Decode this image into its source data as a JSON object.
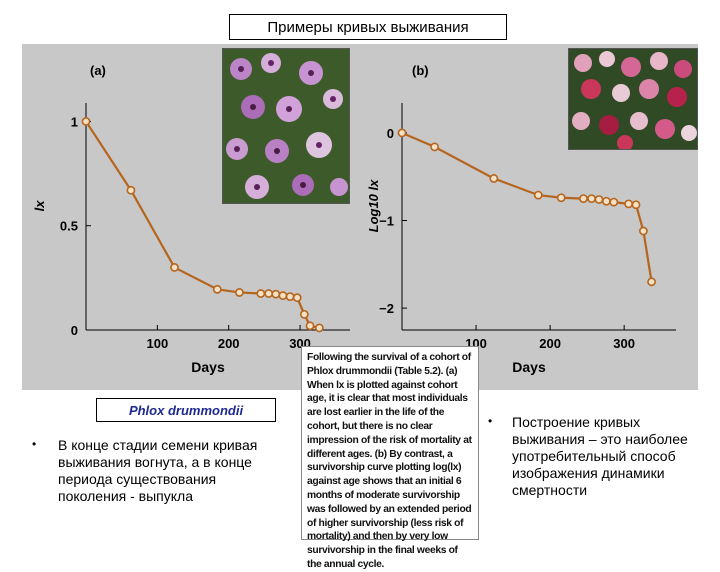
{
  "slide_title": "Примеры кривых выживания",
  "species_label": "Phlox drummondii",
  "bullet_left": "В конце стадии семени кривая выживания вогнута, а в конце периода существования поколения - выпукла",
  "bullet_right": "Построение кривых выживания – это наиболее употребительный способ изображения динамики смертности",
  "bullet_symbol": "•",
  "caption": "Following the survival of a cohort of Phlox drummondii (Table 5.2). (a) When lx is plotted against cohort age, it is clear that most individuals are lost earlier in the life of the cohort, but there is no clear impression of the risk of mortality at different ages. (b) By contrast, a survivorship curve plotting log(lx) against age shows that an initial 6 months of moderate survivorship was followed by an extended period of higher survivorship (less risk of mortality) and then by very low survivorship in the final weeks of the annual cycle.",
  "colors": {
    "line": "#b5651d",
    "marker_fill": "#f4e1c6",
    "panel": "#c8c8c8"
  },
  "chart_data": [
    {
      "type": "line",
      "panel_label": "(a)",
      "xlabel": "Days",
      "ylabel": "lx",
      "xlim": [
        0,
        370
      ],
      "ylim": [
        0,
        1.05
      ],
      "x_ticks": [
        100,
        200,
        300
      ],
      "y_ticks": [
        0,
        0.5,
        1
      ],
      "y_tick_labels": [
        "0",
        "0.5",
        "1"
      ],
      "x": [
        0,
        63,
        124,
        184,
        215,
        245,
        256,
        266,
        276,
        286,
        296,
        306,
        314,
        327
      ],
      "y": [
        1.0,
        0.67,
        0.3,
        0.195,
        0.18,
        0.175,
        0.175,
        0.172,
        0.165,
        0.16,
        0.155,
        0.075,
        0.02,
        0.01
      ]
    },
    {
      "type": "line",
      "panel_label": "(b)",
      "xlabel": "Days",
      "ylabel": "Log10 lx",
      "xlim": [
        0,
        370
      ],
      "ylim": [
        -2.25,
        0.25
      ],
      "x_ticks": [
        100,
        200,
        300
      ],
      "y_ticks": [
        0,
        -1,
        -2
      ],
      "y_tick_labels": [
        "0",
        "−1",
        "−2"
      ],
      "x": [
        0,
        44,
        124,
        184,
        215,
        245,
        256,
        266,
        276,
        286,
        306,
        316,
        326,
        337
      ],
      "y": [
        0.0,
        -0.16,
        -0.52,
        -0.71,
        -0.74,
        -0.75,
        -0.75,
        -0.76,
        -0.78,
        -0.79,
        -0.81,
        -0.82,
        -1.12,
        -1.7
      ]
    }
  ]
}
